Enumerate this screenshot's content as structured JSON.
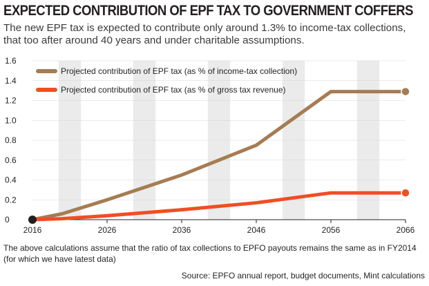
{
  "header": {
    "title": "EXPECTED CONTRIBUTION OF EPF TAX TO GOVERNMENT COFFERS",
    "subtitle": "The new EPF tax is expected to contribute only around 1.3% to income-tax collections, that too after around 40 years and under charitable assumptions."
  },
  "footer": {
    "note": "The above calculations assume that the ratio of tax collections to EPFO payouts remains the same as in FY2014 (for which we have latest data)",
    "source": "Source: EPFO annual report, budget documents, Mint calculations"
  },
  "chart_data": {
    "type": "line",
    "x": [
      2016,
      2020,
      2026,
      2036,
      2046,
      2056,
      2066
    ],
    "xticks": [
      "2016",
      "2026",
      "2036",
      "2046",
      "2056",
      "2066"
    ],
    "xlim": [
      2016,
      2066
    ],
    "ylim": [
      0,
      1.6
    ],
    "yticks": [
      "0",
      "0.2",
      "0.4",
      "0.6",
      "0.8",
      "1.0",
      "1.2",
      "1.4",
      "1.6"
    ],
    "grid": "alternating vertical bands",
    "legend_position": "top-left",
    "series": [
      {
        "name": "Projected contribution of EPF tax (as % of income-tax collection)",
        "color": "#a67c52",
        "values": [
          0,
          0.06,
          0.2,
          0.45,
          0.75,
          1.29,
          1.29
        ]
      },
      {
        "name": "Projected contribution of EPF tax (as % of gross tax revenue)",
        "color": "#f04e23",
        "values": [
          0,
          0.01,
          0.04,
          0.1,
          0.17,
          0.27,
          0.27
        ]
      }
    ],
    "start_marker_color": "#231f20"
  }
}
